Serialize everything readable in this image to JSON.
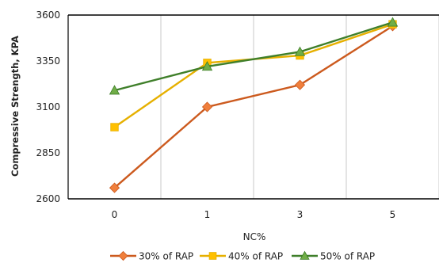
{
  "chart_data": {
    "type": "line",
    "categories": [
      "0",
      "1",
      "3",
      "5"
    ],
    "xlabel": "NC%",
    "ylabel": "Compressive Strength, KPA",
    "ylim": [
      2600,
      3600
    ],
    "yticks": [
      "2600",
      "2850",
      "3100",
      "3350",
      "3600"
    ],
    "grid": "vertical",
    "legend": "bottom",
    "series": [
      {
        "name": "30% of RAP",
        "values": [
          2660,
          3100,
          3220,
          3540
        ],
        "color": "#cc5a1e",
        "marker": "diamond",
        "marker_color": "#f07f3c"
      },
      {
        "name": "40% of RAP",
        "values": [
          2990,
          3340,
          3380,
          3550
        ],
        "color": "#e6b000",
        "marker": "square",
        "marker_color": "#ffc000"
      },
      {
        "name": "50% of RAP",
        "values": [
          3190,
          3320,
          3400,
          3560
        ],
        "color": "#3f7f2a",
        "marker": "triangle",
        "marker_color": "#70ad47"
      }
    ]
  }
}
